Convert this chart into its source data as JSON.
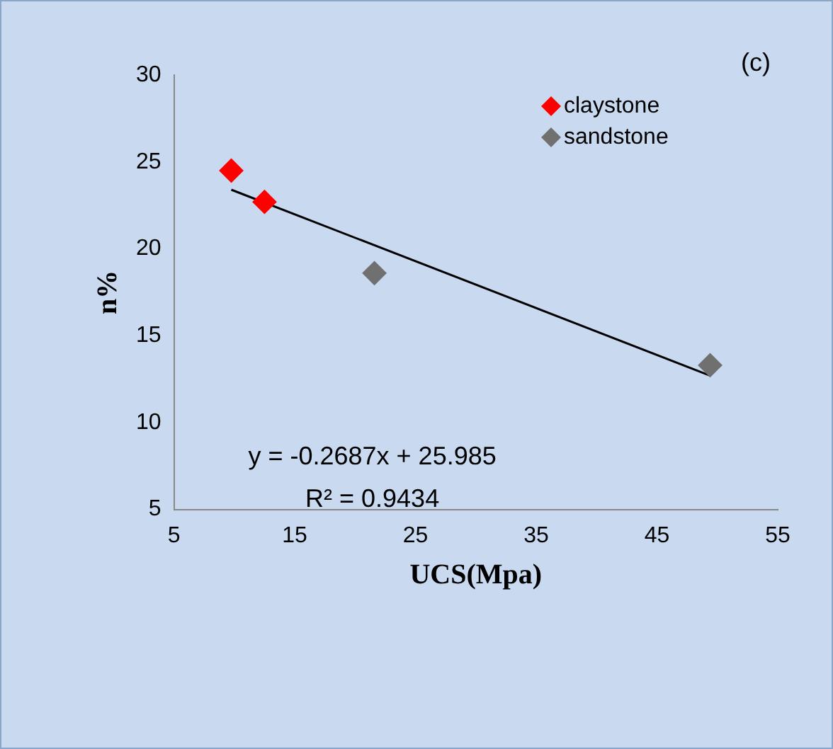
{
  "chart_data": {
    "type": "scatter",
    "xlabel": "UCS(Mpa)",
    "ylabel": "n%",
    "xlim": [
      5,
      55
    ],
    "xticks": [
      5,
      15,
      25,
      35,
      45,
      55
    ],
    "ylim": [
      5,
      30
    ],
    "yticks": [
      5,
      10,
      15,
      20,
      25,
      30
    ],
    "grid": false,
    "legend": "top right",
    "marker": "diamond",
    "series": [
      {
        "name": "claystone",
        "color": "#ff0000",
        "x": [
          9.75,
          12.5
        ],
        "values": [
          24.5,
          22.7
        ]
      },
      {
        "name": "sandstone",
        "color": "#707070",
        "x": [
          21.6,
          49.4
        ],
        "values": [
          18.6,
          13.3
        ]
      },
      {
        "type": "line",
        "color": "#000000",
        "x": [
          9.75,
          49.4
        ],
        "values": [
          23.4,
          12.7
        ],
        "marker": "none"
      }
    ],
    "annotations": [
      "(c)",
      "y = -0.2687x + 25.985",
      "R² = 0.9434"
    ]
  }
}
